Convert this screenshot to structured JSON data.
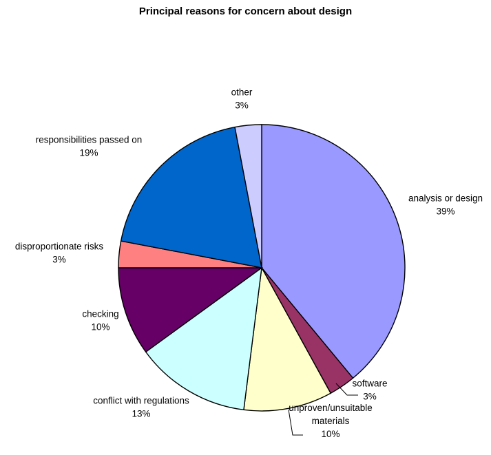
{
  "chart_data": {
    "type": "pie",
    "title": "Principal reasons for concern about design",
    "slices": [
      {
        "label": "analysis or design",
        "pct_label": "39%",
        "value": 39,
        "color": "#9999ff"
      },
      {
        "label": "software",
        "pct_label": "3%",
        "value": 3,
        "color": "#993366"
      },
      {
        "label": "unproven/unsuitable materials",
        "label_lines": [
          "unproven/unsuitable",
          "materials"
        ],
        "pct_label": "10%",
        "value": 10,
        "color": "#ffffcc"
      },
      {
        "label": "conflict with regulations",
        "pct_label": "13%",
        "value": 13,
        "color": "#ccffff"
      },
      {
        "label": "checking",
        "pct_label": "10%",
        "value": 10,
        "color": "#660066"
      },
      {
        "label": "disproportionate risks",
        "pct_label": "3%",
        "value": 3,
        "color": "#ff8080"
      },
      {
        "label": "responsibilities passed on",
        "pct_label": "19%",
        "value": 19,
        "color": "#0066cc"
      },
      {
        "label": "other",
        "pct_label": "3%",
        "value": 3,
        "color": "#ccccff"
      }
    ]
  }
}
